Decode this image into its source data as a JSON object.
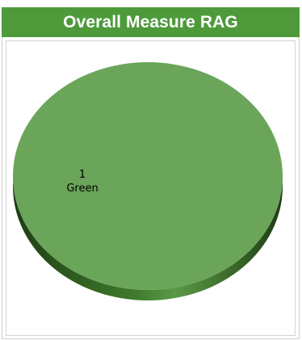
{
  "widget": {
    "title": "Overall Measure RAG"
  },
  "chart_data": {
    "type": "pie",
    "title": "Overall Measure RAG",
    "style": "3d",
    "slices": [
      {
        "label": "Green",
        "value": 1,
        "color": "#6aa55a"
      }
    ],
    "data_labels": "value-and-category",
    "legend": "none"
  }
}
